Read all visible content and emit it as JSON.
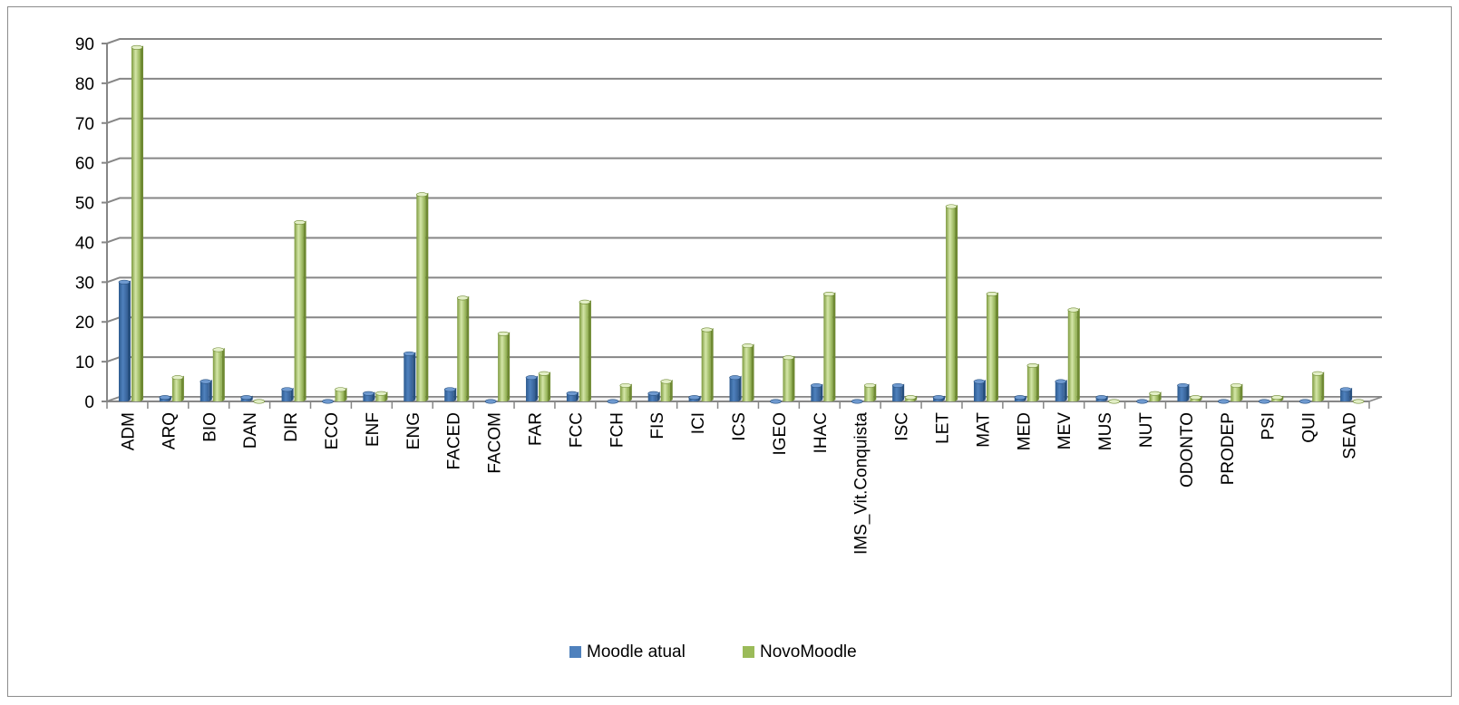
{
  "chart_data": {
    "type": "bar",
    "title": "",
    "xlabel": "",
    "ylabel": "",
    "ylim": [
      0,
      90
    ],
    "yticks": [
      0,
      10,
      20,
      30,
      40,
      50,
      60,
      70,
      80,
      90
    ],
    "grid": true,
    "legend_position": "bottom",
    "categories": [
      "ADM",
      "ARQ",
      "BIO",
      "DAN",
      "DIR",
      "ECO",
      "ENF",
      "ENG",
      "FACED",
      "FACOM",
      "FAR",
      "FCC",
      "FCH",
      "FIS",
      "ICI",
      "ICS",
      "IGEO",
      "IHAC",
      "IMS_Vit.Conquista",
      "ISC",
      "LET",
      "MAT",
      "MED",
      "MEV",
      "MUS",
      "NUT",
      "ODONTO",
      "PRODEP",
      "PSI",
      "QUI",
      "SEAD"
    ],
    "series": [
      {
        "name": "Moodle atual",
        "color": "#4f81bd",
        "values": [
          30,
          1,
          5,
          1,
          3,
          0,
          2,
          12,
          3,
          0,
          6,
          2,
          0,
          2,
          1,
          6,
          0,
          4,
          0,
          4,
          1,
          5,
          1,
          5,
          1,
          0,
          4,
          0,
          0,
          0,
          3
        ]
      },
      {
        "name": "NovoMoodle",
        "color": "#9bbb59",
        "values": [
          89,
          6,
          13,
          0,
          45,
          3,
          2,
          52,
          26,
          17,
          7,
          25,
          4,
          5,
          18,
          14,
          11,
          27,
          4,
          1,
          49,
          27,
          9,
          23,
          0,
          2,
          1,
          4,
          1,
          7,
          0
        ]
      }
    ]
  }
}
